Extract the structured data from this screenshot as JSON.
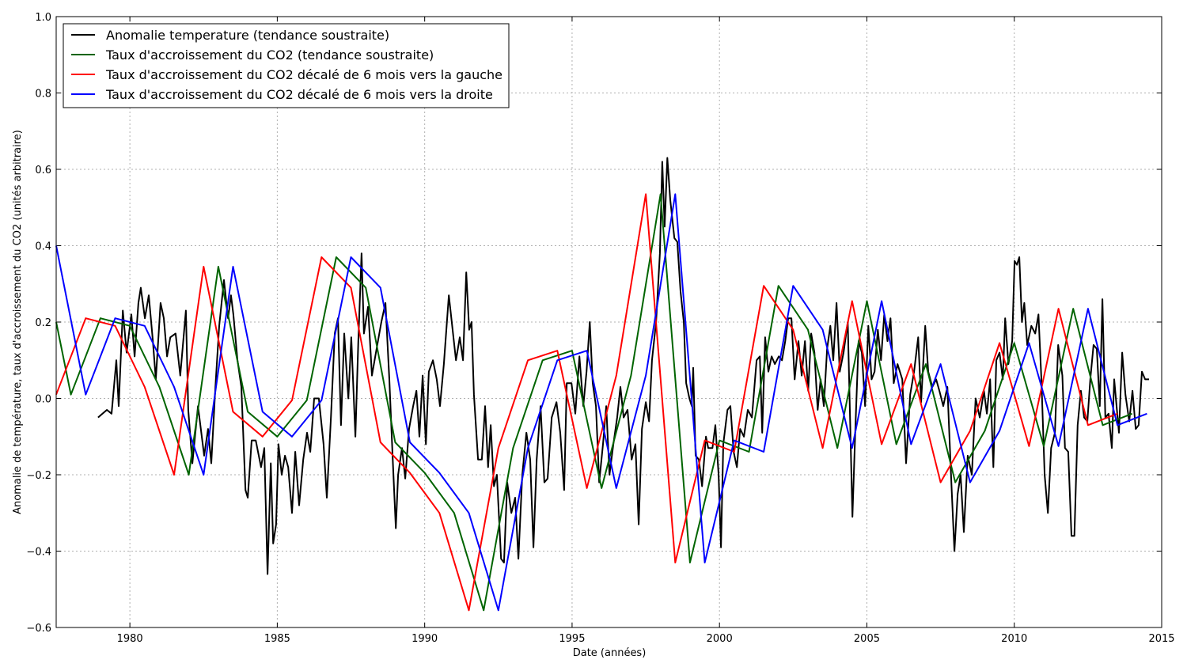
{
  "chart_data": {
    "type": "line",
    "x_label": "Date (années)",
    "y_label": "Anomalie de température, taux d'accroissement du CO2 (unités arbitraire)",
    "xlim": [
      1977.5,
      2015
    ],
    "ylim": [
      -0.6,
      1.0
    ],
    "xticks": [
      1980,
      1985,
      1990,
      1995,
      2000,
      2005,
      2010,
      2015
    ],
    "yticks": [
      {
        "value": -0.6,
        "label": "−0.6"
      },
      {
        "value": -0.4,
        "label": "−0.4"
      },
      {
        "value": -0.2,
        "label": "−0.2"
      },
      {
        "value": 0,
        "label": "0.0"
      },
      0.2,
      0.4,
      0.6,
      0.8,
      {
        "value": 1.0,
        "label": "1.0"
      }
    ],
    "grid": true,
    "legend": "upper left",
    "series": [
      {
        "name": "Anomalie temperature (tendance soustraite)",
        "color": "#000000",
        "x": [
          1978.92,
          1979.22,
          1979.38,
          1979.54,
          1979.62,
          1979.76,
          1979.89,
          1980.05,
          1980.16,
          1980.29,
          1980.37,
          1980.51,
          1980.64,
          1980.78,
          1980.88,
          1981.04,
          1981.15,
          1981.26,
          1981.37,
          1981.55,
          1981.71,
          1981.9,
          1981.98,
          1982.12,
          1982.31,
          1982.52,
          1982.65,
          1982.76,
          1982.9,
          1983.03,
          1983.19,
          1983.33,
          1983.43,
          1983.51,
          1983.65,
          1983.78,
          1983.92,
          1984.0,
          1984.13,
          1984.27,
          1984.45,
          1984.56,
          1984.67,
          1984.78,
          1984.86,
          1984.96,
          1985.04,
          1985.15,
          1985.26,
          1985.37,
          1985.5,
          1985.61,
          1985.74,
          1985.88,
          1986.01,
          1986.12,
          1986.25,
          1986.41,
          1986.57,
          1986.68,
          1986.82,
          1986.95,
          1987.06,
          1987.16,
          1987.27,
          1987.41,
          1987.51,
          1987.65,
          1987.75,
          1987.86,
          1987.94,
          1988.08,
          1988.21,
          1988.37,
          1988.53,
          1988.67,
          1988.8,
          1988.91,
          1989.02,
          1989.1,
          1989.23,
          1989.34,
          1989.47,
          1989.61,
          1989.72,
          1989.82,
          1989.93,
          1990.04,
          1990.14,
          1990.28,
          1990.41,
          1990.52,
          1990.65,
          1990.82,
          1990.92,
          1991.06,
          1991.19,
          1991.3,
          1991.41,
          1991.51,
          1991.59,
          1991.67,
          1991.81,
          1991.94,
          1992.05,
          1992.15,
          1992.24,
          1992.35,
          1992.45,
          1992.59,
          1992.69,
          1992.8,
          1992.94,
          1993.07,
          1993.18,
          1993.31,
          1993.45,
          1993.58,
          1993.69,
          1993.8,
          1993.93,
          1994.06,
          1994.17,
          1994.31,
          1994.47,
          1994.6,
          1994.73,
          1994.82,
          1994.98,
          1995.11,
          1995.25,
          1995.38,
          1995.49,
          1995.6,
          1995.7,
          1995.81,
          1995.92,
          1996.05,
          1996.16,
          1996.27,
          1996.4,
          1996.53,
          1996.64,
          1996.75,
          1996.88,
          1997.02,
          1997.15,
          1997.26,
          1997.37,
          1997.5,
          1997.61,
          1997.71,
          1997.85,
          1997.98,
          1998.06,
          1998.14,
          1998.23,
          1998.33,
          1998.47,
          1998.57,
          1998.68,
          1998.79,
          1998.87,
          1998.98,
          1999.06,
          1999.11,
          1999.19,
          1999.3,
          1999.41,
          1999.54,
          1999.62,
          1999.76,
          1999.86,
          1999.97,
          2000.05,
          2000.13,
          2000.27,
          2000.37,
          2000.48,
          2000.59,
          2000.7,
          2000.83,
          2000.96,
          2001.1,
          2001.26,
          2001.37,
          2001.45,
          2001.55,
          2001.66,
          2001.77,
          2001.88,
          2002.01,
          2002.12,
          2002.23,
          2002.33,
          2002.44,
          2002.55,
          2002.68,
          2002.79,
          2002.9,
          2003.01,
          2003.11,
          2003.22,
          2003.33,
          2003.43,
          2003.54,
          2003.65,
          2003.76,
          2003.86,
          2003.97,
          2004.08,
          2004.21,
          2004.35,
          2004.43,
          2004.51,
          2004.61,
          2004.72,
          2004.83,
          2004.94,
          2005.05,
          2005.16,
          2005.26,
          2005.37,
          2005.48,
          2005.59,
          2005.7,
          2005.8,
          2005.91,
          2006.04,
          2006.2,
          2006.33,
          2006.47,
          2006.6,
          2006.74,
          2006.84,
          2006.98,
          2007.08,
          2007.22,
          2007.35,
          2007.46,
          2007.59,
          2007.73,
          2007.86,
          2007.97,
          2008.08,
          2008.18,
          2008.29,
          2008.42,
          2008.56,
          2008.69,
          2008.83,
          2008.97,
          2009.07,
          2009.18,
          2009.29,
          2009.39,
          2009.5,
          2009.61,
          2009.69,
          2009.8,
          2009.93,
          2010.01,
          2010.09,
          2010.17,
          2010.26,
          2010.34,
          2010.44,
          2010.58,
          2010.71,
          2010.82,
          2010.92,
          2011.03,
          2011.14,
          2011.25,
          2011.38,
          2011.49,
          2011.63,
          2011.72,
          2011.83,
          2011.94,
          2012.04,
          2012.15,
          2012.26,
          2012.37,
          2012.48,
          2012.58,
          2012.69,
          2012.8,
          2012.9,
          2012.99,
          2013.09,
          2013.2,
          2013.31,
          2013.39,
          2013.55,
          2013.66,
          2013.77,
          2013.9,
          2014.01,
          2014.12,
          2014.22,
          2014.33,
          2014.44,
          2014.57
        ],
        "values": [
          -0.05,
          -0.03,
          -0.04,
          0.1,
          -0.02,
          0.23,
          0.12,
          0.22,
          0.11,
          0.25,
          0.29,
          0.21,
          0.27,
          0.15,
          0.05,
          0.25,
          0.21,
          0.11,
          0.16,
          0.17,
          0.06,
          0.23,
          -0.03,
          -0.17,
          -0.02,
          -0.15,
          -0.08,
          -0.17,
          0.03,
          0.19,
          0.31,
          0.21,
          0.27,
          0.22,
          0.1,
          0.03,
          -0.24,
          -0.26,
          -0.11,
          -0.11,
          -0.18,
          -0.13,
          -0.46,
          -0.17,
          -0.38,
          -0.33,
          -0.12,
          -0.2,
          -0.15,
          -0.18,
          -0.3,
          -0.14,
          -0.28,
          -0.16,
          -0.09,
          -0.14,
          0.0,
          0.0,
          -0.12,
          -0.26,
          -0.05,
          0.17,
          0.21,
          -0.07,
          0.17,
          0.0,
          0.16,
          -0.1,
          0.15,
          0.38,
          0.17,
          0.24,
          0.06,
          0.13,
          0.2,
          0.25,
          0.05,
          -0.15,
          -0.34,
          -0.2,
          -0.13,
          -0.21,
          -0.08,
          -0.02,
          0.02,
          -0.1,
          0.06,
          -0.12,
          0.07,
          0.1,
          0.05,
          -0.02,
          0.09,
          0.27,
          0.2,
          0.1,
          0.16,
          0.1,
          0.33,
          0.18,
          0.2,
          0.01,
          -0.16,
          -0.16,
          -0.02,
          -0.18,
          -0.07,
          -0.23,
          -0.2,
          -0.42,
          -0.43,
          -0.22,
          -0.3,
          -0.26,
          -0.42,
          -0.2,
          -0.09,
          -0.16,
          -0.39,
          -0.16,
          -0.02,
          -0.22,
          -0.21,
          -0.05,
          -0.01,
          -0.09,
          -0.24,
          0.04,
          0.04,
          -0.04,
          0.11,
          -0.02,
          0.07,
          0.2,
          0.04,
          -0.02,
          -0.22,
          -0.12,
          -0.02,
          -0.2,
          -0.12,
          -0.05,
          0.03,
          -0.05,
          -0.03,
          -0.16,
          -0.12,
          -0.33,
          -0.08,
          -0.01,
          -0.06,
          0.1,
          0.2,
          0.38,
          0.62,
          0.45,
          0.63,
          0.52,
          0.42,
          0.41,
          0.28,
          0.2,
          0.04,
          0.0,
          -0.02,
          0.08,
          -0.15,
          -0.16,
          -0.23,
          -0.1,
          -0.13,
          -0.13,
          -0.07,
          -0.2,
          -0.39,
          -0.12,
          -0.03,
          -0.02,
          -0.14,
          -0.18,
          -0.08,
          -0.1,
          -0.03,
          -0.05,
          0.1,
          0.11,
          -0.09,
          0.16,
          0.07,
          0.11,
          0.09,
          0.11,
          0.1,
          0.15,
          0.21,
          0.21,
          0.05,
          0.15,
          0.06,
          0.15,
          0.02,
          0.17,
          0.12,
          -0.03,
          0.05,
          -0.02,
          0.13,
          0.19,
          0.1,
          0.25,
          0.07,
          0.12,
          0.2,
          -0.05,
          -0.31,
          -0.08,
          0.15,
          0.12,
          -0.02,
          0.19,
          0.05,
          0.07,
          0.18,
          0.1,
          0.22,
          0.15,
          0.21,
          0.04,
          0.09,
          0.05,
          -0.17,
          0.01,
          0.07,
          0.16,
          -0.01,
          0.19,
          0.07,
          0.03,
          0.05,
          0.02,
          -0.02,
          0.03,
          -0.21,
          -0.4,
          -0.25,
          -0.2,
          -0.35,
          -0.15,
          -0.2,
          0.0,
          -0.05,
          0.02,
          -0.04,
          0.05,
          -0.18,
          0.1,
          0.12,
          0.05,
          0.21,
          0.09,
          0.15,
          0.36,
          0.35,
          0.37,
          0.2,
          0.25,
          0.14,
          0.19,
          0.17,
          0.22,
          0.05,
          -0.2,
          -0.3,
          -0.13,
          -0.09,
          0.14,
          0.06,
          -0.13,
          -0.14,
          -0.36,
          -0.36,
          -0.07,
          0.02,
          -0.05,
          -0.06,
          0.05,
          0.14,
          0.13,
          -0.02,
          0.26,
          -0.05,
          -0.04,
          -0.13,
          0.05,
          -0.09,
          0.12,
          0.01,
          -0.06,
          0.02,
          -0.08,
          -0.07,
          0.07,
          0.05,
          0.05
        ]
      },
      {
        "name": "Taux d'accroissement du CO2 (tendance soustraite)",
        "color": "#006400",
        "x": [
          1977.5,
          1978,
          1979,
          1980,
          1981,
          1982,
          1983,
          1984,
          1985,
          1986,
          1987,
          1988,
          1989,
          1990,
          1991,
          1992,
          1993,
          1994,
          1995,
          1996,
          1997,
          1998,
          1999,
          2000,
          2001,
          2002,
          2003,
          2004,
          2005,
          2006,
          2007,
          2008,
          2009,
          2010,
          2011,
          2012,
          2013,
          2014
        ],
        "values": [
          0.2,
          0.01,
          0.21,
          0.19,
          0.03,
          -0.2,
          0.345,
          -0.035,
          -0.1,
          -0.005,
          0.37,
          0.29,
          -0.115,
          -0.195,
          -0.3,
          -0.555,
          -0.13,
          0.1,
          0.125,
          -0.235,
          0.06,
          0.535,
          -0.43,
          -0.11,
          -0.14,
          0.295,
          0.18,
          -0.13,
          0.255,
          -0.12,
          0.09,
          -0.22,
          -0.085,
          0.145,
          -0.125,
          0.235,
          -0.07,
          -0.04
        ]
      },
      {
        "name": "Taux d'accroissement du CO2 décalé de 6 mois vers la gauche",
        "color": "#ff0000",
        "x": [
          1977.5,
          1978.5,
          1979.5,
          1980.5,
          1981.5,
          1982.5,
          1983.5,
          1984.5,
          1985.5,
          1986.5,
          1987.5,
          1988.5,
          1989.5,
          1990.5,
          1991.5,
          1992.5,
          1993.5,
          1994.5,
          1995.5,
          1996.5,
          1997.5,
          1998.5,
          1999.5,
          2000.5,
          2001.5,
          2002.5,
          2003.5,
          2004.5,
          2005.5,
          2006.5,
          2007.5,
          2008.5,
          2009.5,
          2010.5,
          2011.5,
          2012.5,
          2013.5
        ],
        "values": [
          0.01,
          0.21,
          0.19,
          0.03,
          -0.2,
          0.345,
          -0.035,
          -0.1,
          -0.005,
          0.37,
          0.29,
          -0.115,
          -0.195,
          -0.3,
          -0.555,
          -0.13,
          0.1,
          0.125,
          -0.235,
          0.06,
          0.535,
          -0.43,
          -0.11,
          -0.14,
          0.295,
          0.18,
          -0.13,
          0.255,
          -0.12,
          0.09,
          -0.22,
          -0.085,
          0.145,
          -0.125,
          0.235,
          -0.07,
          -0.04
        ]
      },
      {
        "name": "Taux d'accroissement du CO2 décalé de 6 mois vers la droite",
        "color": "#0000ff",
        "x": [
          1977.5,
          1978.5,
          1979.5,
          1980.5,
          1981.5,
          1982.5,
          1983.5,
          1984.5,
          1985.5,
          1986.5,
          1987.5,
          1988.5,
          1989.5,
          1990.5,
          1991.5,
          1992.5,
          1993.5,
          1994.5,
          1995.5,
          1996.5,
          1997.5,
          1998.5,
          1999.5,
          2000.5,
          2001.5,
          2002.5,
          2003.5,
          2004.5,
          2005.5,
          2006.5,
          2007.5,
          2008.5,
          2009.5,
          2010.5,
          2011.5,
          2012.5,
          2013.5,
          2014.5
        ],
        "values": [
          0.4,
          0.01,
          0.21,
          0.19,
          0.03,
          -0.2,
          0.345,
          -0.035,
          -0.1,
          -0.005,
          0.37,
          0.29,
          -0.115,
          -0.195,
          -0.3,
          -0.555,
          -0.13,
          0.1,
          0.125,
          -0.235,
          0.06,
          0.535,
          -0.43,
          -0.11,
          -0.14,
          0.295,
          0.18,
          -0.13,
          0.255,
          -0.12,
          0.09,
          -0.22,
          -0.085,
          0.145,
          -0.125,
          0.235,
          -0.07,
          -0.04
        ]
      }
    ]
  }
}
